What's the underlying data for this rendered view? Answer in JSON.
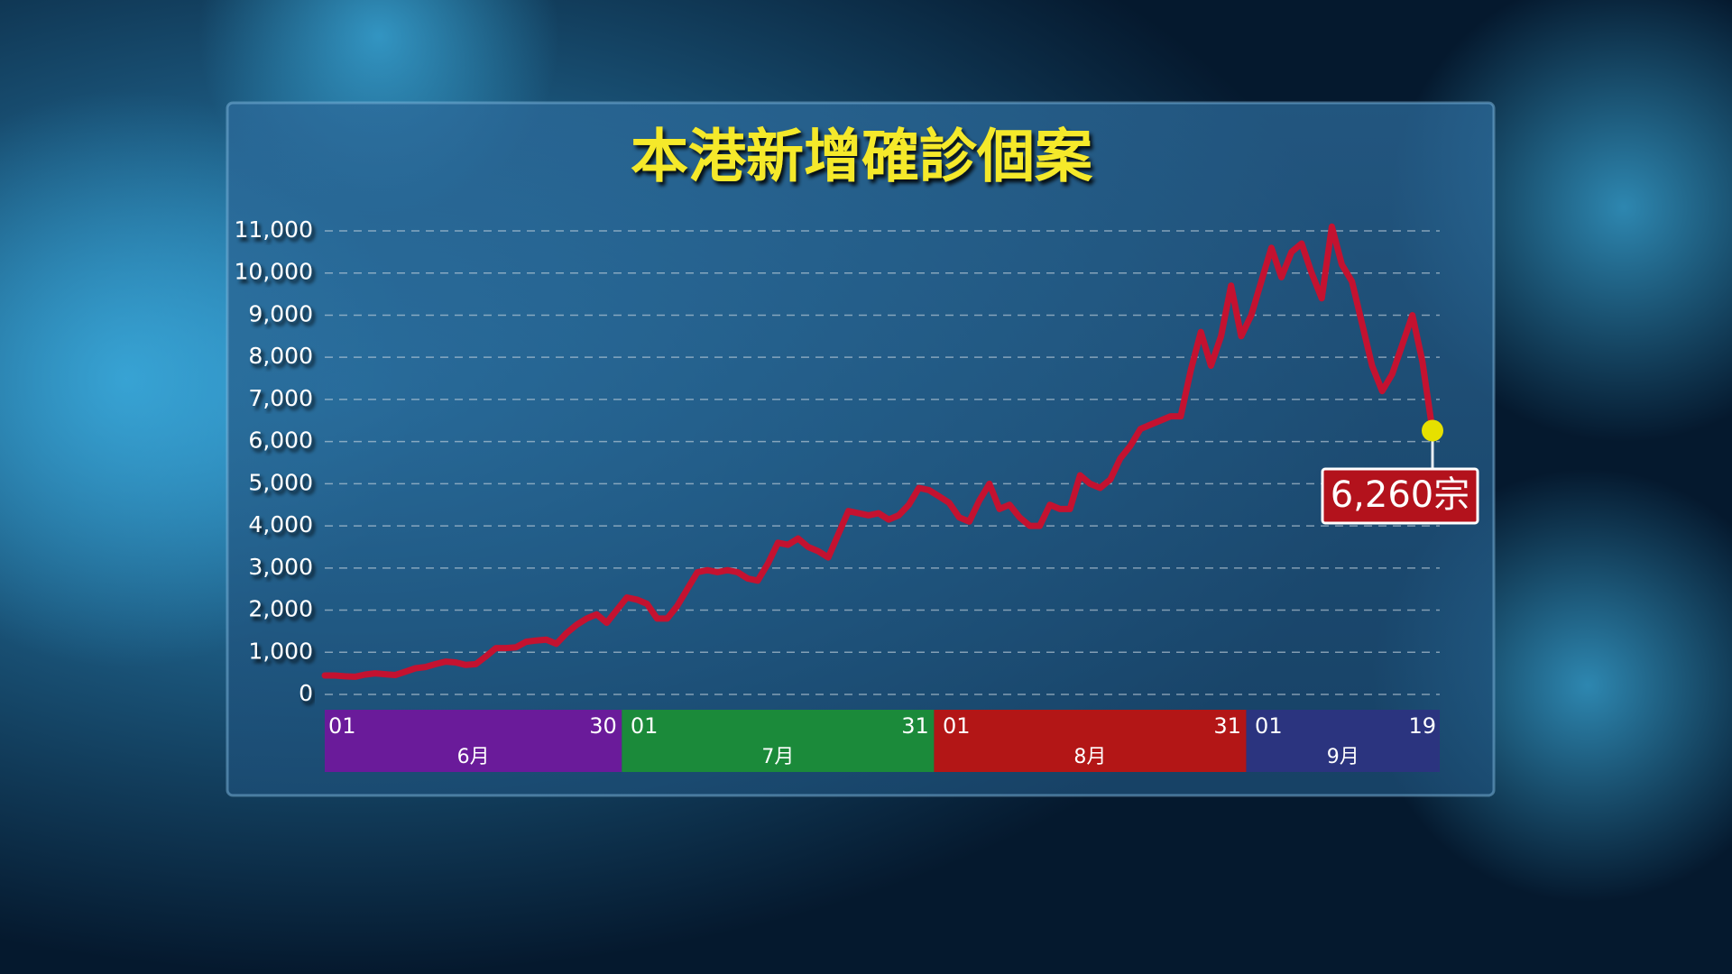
{
  "chart_data": {
    "type": "line",
    "title": "本港新增確診個案",
    "categories": [
      "01",
      null,
      null,
      null,
      null,
      null,
      null,
      null,
      null,
      null,
      null,
      null,
      null,
      null,
      null,
      null,
      null,
      null,
      null,
      null,
      null,
      null,
      null,
      null,
      null,
      null,
      null,
      null,
      null,
      "30",
      "01",
      null,
      null,
      null,
      null,
      null,
      null,
      null,
      null,
      null,
      null,
      null,
      null,
      null,
      null,
      null,
      null,
      null,
      null,
      null,
      null,
      null,
      null,
      null,
      null,
      null,
      null,
      null,
      null,
      null,
      "31",
      "01",
      null,
      null,
      null,
      null,
      null,
      null,
      null,
      null,
      null,
      null,
      null,
      null,
      null,
      null,
      null,
      null,
      null,
      null,
      null,
      null,
      null,
      null,
      null,
      null,
      null,
      null,
      null,
      null,
      null,
      "31",
      "01",
      null,
      null,
      null,
      null,
      null,
      null,
      null,
      null,
      null,
      null,
      null,
      null,
      null,
      null,
      null,
      null,
      null,
      "19"
    ],
    "values": [
      450,
      450,
      430,
      420,
      470,
      500,
      480,
      460,
      540,
      620,
      650,
      720,
      780,
      760,
      700,
      720,
      900,
      1100,
      1100,
      1120,
      1250,
      1280,
      1300,
      1200,
      1450,
      1650,
      1800,
      1900,
      1700,
      2000,
      2300,
      2250,
      2150,
      1800,
      1800,
      2100,
      2500,
      2900,
      2950,
      2900,
      2950,
      2900,
      2750,
      2700,
      3100,
      3600,
      3550,
      3700,
      3500,
      3400,
      3250,
      3800,
      4350,
      4300,
      4250,
      4300,
      4150,
      4250,
      4500,
      4900,
      4850,
      4700,
      4550,
      4200,
      4100,
      4600,
      5000,
      4400,
      4500,
      4200,
      4000,
      4000,
      4500,
      4400,
      4400,
      5200,
      5000,
      4900,
      5100,
      5600,
      5900,
      6300,
      6400,
      6500,
      6600,
      6600,
      7700,
      8600,
      7800,
      8500,
      9700,
      8500,
      9000,
      9800,
      10600,
      9900,
      10500,
      10700,
      10000,
      9400,
      11100,
      10200,
      9800,
      8800,
      7800,
      7200,
      7600,
      8300,
      9000,
      7900,
      6260
    ],
    "color": "#c41230",
    "marker_color": "#e6e000",
    "annotation": "6,260宗",
    "months": [
      {
        "name": "6月",
        "color": "#6a1b9a"
      },
      {
        "name": "7月",
        "color": "#1b8a3a"
      },
      {
        "name": "8月",
        "color": "#b31616"
      },
      {
        "name": "9月",
        "color": "#2b347f"
      }
    ],
    "ylim": [
      0,
      11000
    ],
    "yticks": [
      0,
      {
        "value": 1000,
        "label": "1,000"
      },
      {
        "value": 2000,
        "label": "2,000"
      },
      {
        "value": 3000,
        "label": "3,000"
      },
      {
        "value": 4000,
        "label": "4,000"
      },
      {
        "value": 5000,
        "label": "5,000"
      },
      {
        "value": 6000,
        "label": "6,000"
      },
      {
        "value": 7000,
        "label": "7,000"
      },
      {
        "value": 8000,
        "label": "8,000"
      },
      {
        "value": 9000,
        "label": "9,000"
      },
      {
        "value": 10000,
        "label": "10,000"
      },
      {
        "value": 11000,
        "label": "11,000"
      }
    ],
    "grid": true
  }
}
